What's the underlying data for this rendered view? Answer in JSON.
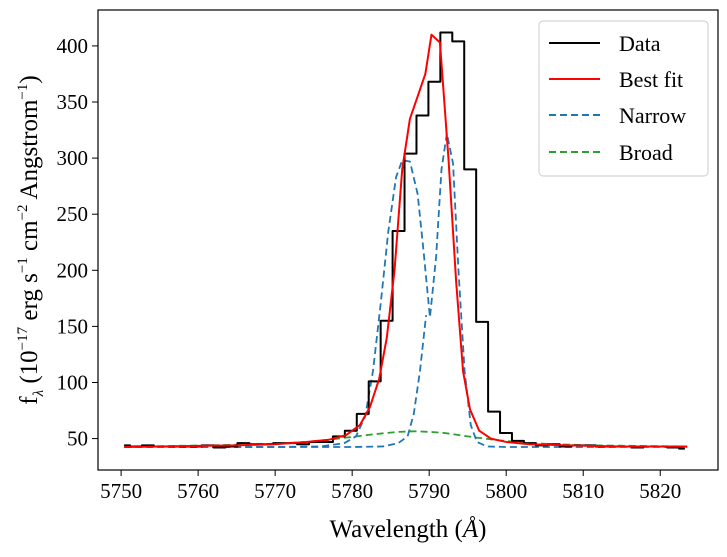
{
  "chart_data": {
    "type": "line",
    "title": "",
    "xlabel": "Wavelength",
    "xlabel_unit": "Å",
    "ylabel_main": "f",
    "ylabel_sub": "λ",
    "ylabel_rest": " (10",
    "ylabel_exp1": "−17",
    "ylabel_rest2": " erg s",
    "ylabel_exp2": "−1",
    "ylabel_rest3": " cm",
    "ylabel_exp3": "−2",
    "ylabel_rest4": " Angstrom",
    "ylabel_exp4": "−1",
    "ylabel_close": ")",
    "xlim": [
      5747,
      5827.5
    ],
    "ylim": [
      22,
      432
    ],
    "xticks": [
      5750,
      5760,
      5770,
      5780,
      5790,
      5800,
      5810,
      5820
    ],
    "yticks": [
      50,
      100,
      150,
      200,
      250,
      300,
      350,
      400
    ],
    "legend_position": "top-right",
    "colors": {
      "data": "#000000",
      "fit": "#ff0000",
      "narrow": "#1f77b4",
      "broad": "#2ca02c"
    },
    "series": [
      {
        "name": "Data",
        "style": "steps-mid",
        "x": [
          5750.4,
          5751.9,
          5753.5,
          5755.0,
          5756.6,
          5758.1,
          5759.7,
          5761.2,
          5762.8,
          5764.3,
          5765.9,
          5767.4,
          5769.0,
          5770.5,
          5772.1,
          5773.6,
          5775.2,
          5776.7,
          5778.3,
          5779.8,
          5781.4,
          5782.9,
          5784.5,
          5786.0,
          5787.6,
          5789.1,
          5790.7,
          5792.2,
          5793.8,
          5795.3,
          5796.9,
          5798.4,
          5800.0,
          5801.5,
          5803.1,
          5804.6,
          5806.2,
          5807.7,
          5809.3,
          5810.8,
          5812.4,
          5813.9,
          5815.5,
          5817.0,
          5818.6,
          5820.1,
          5821.7,
          5823.2
        ],
        "y": [
          44,
          43,
          44,
          43,
          43,
          43,
          43,
          44,
          42,
          43,
          46,
          45,
          45,
          46,
          46,
          45,
          47,
          47,
          52,
          57,
          72,
          101,
          155,
          235,
          304,
          338,
          368,
          412,
          404,
          290,
          154,
          74,
          55,
          48,
          46,
          44,
          45,
          43,
          44,
          44,
          43,
          43,
          43,
          42,
          43,
          43,
          42,
          41
        ]
      },
      {
        "name": "Best fit",
        "style": "line",
        "x": [
          5750.4,
          5755.0,
          5760.0,
          5765.0,
          5770.0,
          5774.0,
          5777.0,
          5779.2,
          5781.0,
          5782.3,
          5783.5,
          5784.5,
          5785.5,
          5786.5,
          5787.5,
          5788.5,
          5789.5,
          5790.3,
          5791.4,
          5792.5,
          5793.5,
          5794.4,
          5795.3,
          5796.5,
          5798.0,
          5800.0,
          5803.0,
          5808.0,
          5815.0,
          5823.5
        ],
        "y": [
          42.5,
          43,
          43.5,
          44,
          45,
          47,
          49,
          53,
          62,
          78,
          103,
          140,
          200,
          290,
          335,
          355,
          375,
          410,
          403,
          300,
          190,
          110,
          76,
          57,
          50,
          47,
          45,
          44,
          43,
          43
        ]
      },
      {
        "name": "Narrow",
        "style": "dashed",
        "x": [
          5750.4,
          5760.0,
          5770.0,
          5776.0,
          5779.0,
          5780.5,
          5781.7,
          5782.7,
          5783.7,
          5784.7,
          5785.7,
          5786.5,
          5787.5,
          5788.5,
          5789.3,
          5790.1,
          5790.9,
          5791.6,
          5792.3,
          5793.1,
          5793.8,
          5794.6,
          5795.4,
          5796.2,
          5797.5,
          5800.0,
          5810.0,
          5823.5
        ],
        "y": [
          42.5,
          42.5,
          42.5,
          43,
          46,
          52,
          70,
          110,
          170,
          235,
          283,
          298,
          297,
          268,
          215,
          158,
          212,
          290,
          322,
          295,
          200,
          110,
          62,
          47,
          43,
          42.5,
          42.5,
          42.5
        ]
      },
      {
        "name": "Narrow",
        "style": "dashed",
        "x": [
          5750.4,
          5780.0,
          5784.0,
          5786.0,
          5787.2,
          5788.0,
          5788.8,
          5789.6
        ],
        "y": [
          42.5,
          42.5,
          43,
          46,
          52,
          72,
          110,
          160
        ]
      },
      {
        "name": "Broad",
        "style": "dashed",
        "x": [
          5750.4,
          5755.0,
          5760.0,
          5765.0,
          5770.0,
          5774.0,
          5777.0,
          5780.0,
          5783.0,
          5786.0,
          5788.0,
          5790.0,
          5792.0,
          5794.0,
          5796.0,
          5799.0,
          5802.0,
          5806.0,
          5811.0,
          5817.0,
          5823.5
        ],
        "y": [
          43,
          43.3,
          43.8,
          44.5,
          45.5,
          47,
          49,
          51.5,
          54,
          56,
          56.5,
          56,
          55,
          53,
          51,
          48.5,
          46.5,
          45,
          44,
          43.5,
          43
        ]
      }
    ],
    "legend": [
      "Data",
      "Best fit",
      "Narrow",
      "Broad"
    ]
  }
}
